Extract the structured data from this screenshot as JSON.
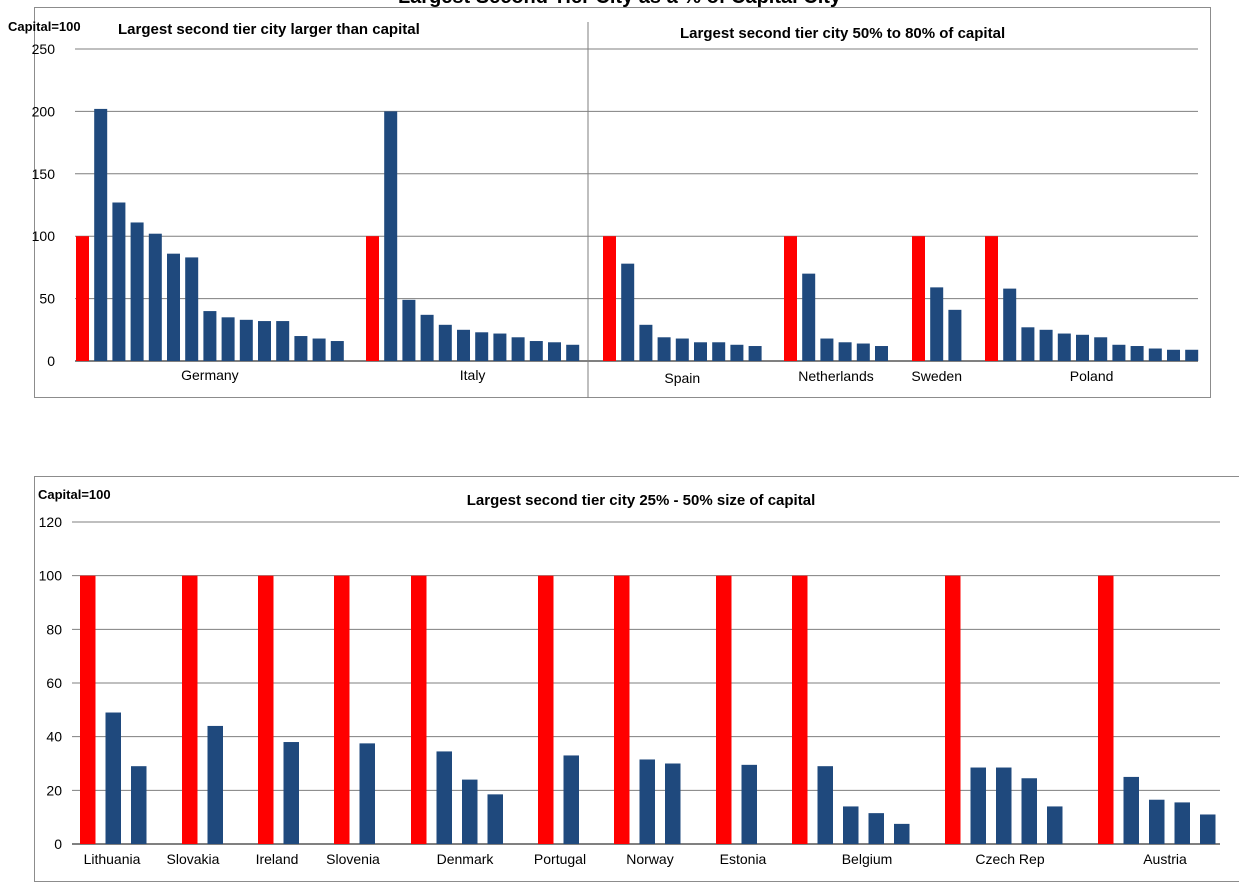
{
  "page_title": "Largest Second Tier City as a % of Capital City",
  "colors": {
    "capital": "#ff0000",
    "second_tier": "#1f497d",
    "grid": "#7f7f7f"
  },
  "chart_data": [
    {
      "type": "bar",
      "ylabel": "Capital=100",
      "ylim": [
        0,
        250
      ],
      "yticks": [
        0,
        50,
        100,
        150,
        200,
        250
      ],
      "grid": true,
      "sections": [
        {
          "title": "Largest second tier city larger than capital",
          "countries": [
            "Germany",
            "Italy"
          ]
        },
        {
          "title": "Largest second tier city 50% to 80% of capital",
          "countries": [
            "Spain",
            "Netherlands",
            "Sweden",
            "Poland"
          ]
        }
      ],
      "groups": [
        {
          "name": "Germany",
          "values": [
            100,
            202,
            127,
            111,
            102,
            86,
            83,
            40,
            35,
            33,
            32,
            32,
            20,
            18,
            16
          ]
        },
        {
          "name": "Italy",
          "values": [
            100,
            200,
            49,
            37,
            29,
            25,
            23,
            22,
            19,
            16,
            15,
            13
          ]
        },
        {
          "name": "Spain",
          "values": [
            100,
            78,
            29,
            19,
            18,
            15,
            15,
            13,
            12
          ]
        },
        {
          "name": "Netherlands",
          "values": [
            100,
            70,
            18,
            15,
            14,
            12
          ]
        },
        {
          "name": "Sweden",
          "values": [
            100,
            59,
            41
          ]
        },
        {
          "name": "Poland",
          "values": [
            100,
            58,
            27,
            25,
            22,
            21,
            19,
            13,
            12,
            10,
            9,
            9
          ]
        }
      ]
    },
    {
      "type": "bar",
      "ylabel": "Capital=100",
      "title": "Largest second tier city 25% - 50% size of capital",
      "ylim": [
        0,
        120
      ],
      "yticks": [
        0,
        20,
        40,
        60,
        80,
        100,
        120
      ],
      "grid": true,
      "groups": [
        {
          "name": "Lithuania",
          "values": [
            100,
            49,
            29
          ]
        },
        {
          "name": "Slovakia",
          "values": [
            100,
            44
          ]
        },
        {
          "name": "Ireland",
          "values": [
            100,
            38
          ]
        },
        {
          "name": "Slovenia",
          "values": [
            100,
            37.5
          ]
        },
        {
          "name": "Denmark",
          "values": [
            100,
            34.5,
            24,
            18.5
          ]
        },
        {
          "name": "Portugal",
          "values": [
            100,
            33
          ]
        },
        {
          "name": "Norway",
          "values": [
            100,
            31.5,
            30
          ]
        },
        {
          "name": "Estonia",
          "values": [
            100,
            29.5
          ]
        },
        {
          "name": "Belgium",
          "values": [
            100,
            29,
            14,
            11.5,
            7.5
          ]
        },
        {
          "name": "Czech Rep",
          "values": [
            100,
            28.5,
            28.5,
            24.5,
            14
          ]
        },
        {
          "name": "Austria",
          "values": [
            100,
            25,
            16.5,
            15.5,
            11
          ]
        }
      ]
    }
  ]
}
